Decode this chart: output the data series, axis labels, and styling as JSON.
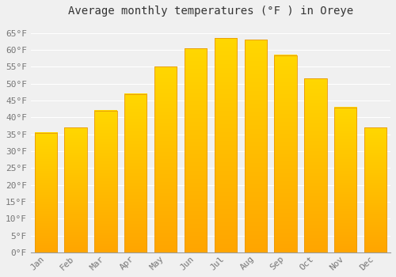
{
  "title": "Average monthly temperatures (°F ) in Oreye",
  "months": [
    "Jan",
    "Feb",
    "Mar",
    "Apr",
    "May",
    "Jun",
    "Jul",
    "Aug",
    "Sep",
    "Oct",
    "Nov",
    "Dec"
  ],
  "values": [
    35.5,
    37.0,
    42.0,
    47.0,
    55.0,
    60.5,
    63.5,
    63.0,
    58.5,
    51.5,
    43.0,
    37.0
  ],
  "bar_color_top": "#FFD700",
  "bar_color_bottom": "#FFA500",
  "bar_edge_color": "#E8980A",
  "background_color": "#F0F0F0",
  "grid_color": "#FFFFFF",
  "yticks": [
    0,
    5,
    10,
    15,
    20,
    25,
    30,
    35,
    40,
    45,
    50,
    55,
    60,
    65
  ],
  "ylim": [
    0,
    68
  ],
  "title_fontsize": 10,
  "tick_fontsize": 8,
  "font_family": "monospace"
}
